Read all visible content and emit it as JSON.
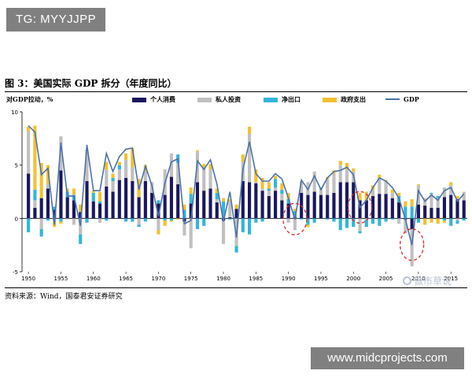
{
  "banner": {
    "text": "TG: MYYJJPP"
  },
  "figure": {
    "title": "图 3：美国实际 GDP 拆分（年度同比）",
    "source": "资料来源：Wind，国泰君安证券研究"
  },
  "watermark": {
    "site": "www.midcprojects.com",
    "logo": "做市草说"
  },
  "colors": {
    "consumption": "#1a1760",
    "investment": "#c0c0c0",
    "net_exports": "#33b5d9",
    "government": "#f2c12e",
    "gdp": "#4c72a8",
    "highlight": "#d42a2a"
  },
  "chart_data": {
    "type": "bar",
    "stacked": true,
    "ylabel": "对GDP拉动，%",
    "ylim": [
      -5,
      10
    ],
    "yticks": [
      "10",
      "5",
      "0",
      "-5"
    ],
    "xticks": [
      "1950",
      "1955",
      "1960",
      "1965",
      "1970",
      "1975",
      "1980",
      "1985",
      "1990",
      "1995",
      "2000",
      "2005",
      "2010",
      "2015"
    ],
    "legend_position": "top",
    "grid": false,
    "highlighted_years": [
      1991,
      2001,
      2009
    ],
    "years": [
      1950,
      1951,
      1952,
      1953,
      1954,
      1955,
      1956,
      1957,
      1958,
      1959,
      1960,
      1961,
      1962,
      1963,
      1964,
      1965,
      1966,
      1967,
      1968,
      1969,
      1970,
      1971,
      1972,
      1973,
      1974,
      1975,
      1976,
      1977,
      1978,
      1979,
      1980,
      1981,
      1982,
      1983,
      1984,
      1985,
      1986,
      1987,
      1988,
      1989,
      1990,
      1991,
      1992,
      1993,
      1994,
      1995,
      1996,
      1997,
      1998,
      1999,
      2000,
      2001,
      2002,
      2003,
      2004,
      2005,
      2006,
      2007,
      2008,
      2009,
      2010,
      2011,
      2012,
      2013,
      2014,
      2015,
      2016,
      2017
    ],
    "series": [
      {
        "name": "个人消费",
        "values": [
          4.2,
          1.0,
          1.9,
          2.8,
          0.8,
          4.5,
          2.0,
          1.7,
          0.6,
          3.5,
          1.6,
          1.4,
          3.0,
          2.5,
          3.6,
          3.8,
          3.5,
          2.0,
          3.5,
          2.4,
          1.4,
          2.2,
          3.9,
          3.2,
          -0.3,
          1.4,
          3.4,
          2.6,
          2.8,
          1.5,
          -0.2,
          0.1,
          0.9,
          3.5,
          3.4,
          3.3,
          2.6,
          2.1,
          2.6,
          1.7,
          1.4,
          0.1,
          2.4,
          2.2,
          2.5,
          2.2,
          2.2,
          2.4,
          3.4,
          3.4,
          3.4,
          1.7,
          1.7,
          2.1,
          2.3,
          2.3,
          1.9,
          1.5,
          -0.1,
          -1.0,
          1.3,
          1.2,
          1.0,
          1.0,
          2.0,
          2.2,
          1.8,
          1.7
        ]
      },
      {
        "name": "私人投资",
        "values": [
          4.0,
          0.7,
          -1.0,
          0.4,
          -0.3,
          3.2,
          -0.1,
          -0.6,
          -1.5,
          2.8,
          0.0,
          -0.4,
          1.6,
          1.0,
          1.0,
          1.7,
          1.3,
          -0.6,
          0.9,
          1.0,
          -1.1,
          2.4,
          2.2,
          2.0,
          -1.3,
          -2.8,
          2.9,
          2.2,
          1.8,
          0.3,
          -2.2,
          1.5,
          -2.6,
          1.8,
          4.5,
          0.1,
          0.2,
          0.5,
          0.3,
          0.6,
          -0.4,
          -1.1,
          1.0,
          1.2,
          1.9,
          0.6,
          1.5,
          1.8,
          1.6,
          1.2,
          1.0,
          -1.2,
          -0.1,
          0.6,
          1.5,
          1.1,
          0.5,
          -0.5,
          -1.3,
          -3.5,
          1.8,
          0.7,
          1.3,
          0.9,
          0.9,
          0.9,
          -0.2,
          0.8
        ]
      },
      {
        "name": "净出口",
        "values": [
          -1.3,
          1.0,
          -0.7,
          -0.2,
          0.3,
          -0.3,
          0.5,
          0.5,
          -0.9,
          -0.4,
          0.8,
          0.2,
          -0.2,
          0.3,
          0.4,
          -0.3,
          -0.3,
          -0.2,
          -0.3,
          0.0,
          0.3,
          -0.2,
          -0.2,
          0.8,
          0.8,
          0.9,
          -1.0,
          -0.7,
          0.0,
          0.6,
          1.6,
          -0.1,
          -0.6,
          -1.3,
          -1.5,
          -0.4,
          -0.3,
          0.2,
          0.8,
          0.4,
          0.4,
          0.6,
          -0.1,
          -0.6,
          -0.4,
          0.1,
          -0.1,
          -0.3,
          -1.1,
          -0.9,
          -0.8,
          -0.2,
          -0.7,
          -0.5,
          -0.7,
          -0.3,
          -0.1,
          0.6,
          1.1,
          1.1,
          -0.4,
          0.0,
          0.1,
          0.2,
          -0.2,
          -0.7,
          -0.3,
          -0.2
        ]
      },
      {
        "name": "政府支出",
        "values": [
          0.4,
          6.0,
          3.3,
          1.8,
          -0.5,
          -0.2,
          0.3,
          0.6,
          0.7,
          0.1,
          0.2,
          0.9,
          0.7,
          0.4,
          0.3,
          0.6,
          1.8,
          1.7,
          0.6,
          0.0,
          -0.4,
          -0.5,
          -0.1,
          -0.1,
          0.5,
          0.6,
          0.1,
          0.3,
          0.5,
          0.4,
          0.3,
          0.2,
          0.4,
          0.7,
          0.7,
          1.2,
          1.0,
          0.6,
          0.3,
          0.6,
          0.6,
          0.2,
          0.1,
          -0.2,
          0.0,
          0.0,
          0.2,
          0.3,
          0.4,
          0.6,
          0.3,
          0.7,
          0.8,
          0.4,
          0.3,
          0.2,
          0.3,
          0.3,
          0.5,
          0.7,
          0.1,
          -0.6,
          -0.4,
          -0.5,
          -0.2,
          0.3,
          0.3,
          0.0
        ]
      }
    ],
    "gdp": {
      "name": "GDP",
      "values": [
        8.7,
        8.1,
        4.1,
        4.7,
        -0.6,
        7.1,
        2.1,
        2.1,
        -0.7,
        6.9,
        2.6,
        2.6,
        6.1,
        4.4,
        5.8,
        6.5,
        6.6,
        2.7,
        4.9,
        3.1,
        0.2,
        3.3,
        5.3,
        5.6,
        -0.5,
        -0.2,
        5.4,
        4.6,
        5.5,
        3.2,
        -0.3,
        2.5,
        -1.8,
        4.6,
        7.2,
        4.2,
        3.5,
        3.5,
        4.2,
        3.7,
        1.9,
        -0.1,
        3.6,
        2.7,
        4.0,
        2.7,
        3.8,
        4.4,
        4.5,
        4.8,
        4.1,
        1.0,
        1.7,
        2.9,
        3.8,
        3.5,
        2.9,
        1.9,
        -0.1,
        -2.5,
        2.6,
        1.6,
        2.2,
        1.7,
        2.6,
        2.9,
        1.6,
        2.3
      ]
    }
  }
}
